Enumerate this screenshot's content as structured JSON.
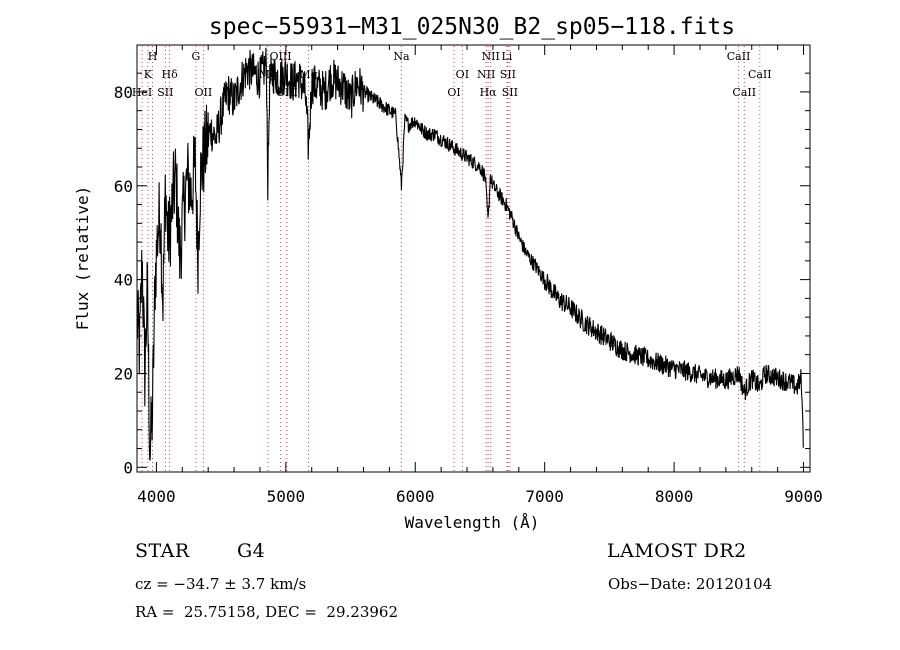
{
  "chart_data": {
    "type": "line",
    "title": "spec−55931−M31_025N30_B2_sp05−118.fits",
    "xlabel": "Wavelength (Å)",
    "ylabel": "Flux (relative)",
    "xlim": [
      3850,
      9050
    ],
    "ylim": [
      -1,
      90
    ],
    "xticks": [
      4000,
      5000,
      6000,
      7000,
      8000,
      9000
    ],
    "yticks": [
      0,
      20,
      40,
      60,
      80
    ],
    "grid": false,
    "series": [
      {
        "x": [
          3850,
          3870,
          3890,
          3910,
          3930,
          3950,
          3970,
          3990,
          4010,
          4030,
          4050,
          4070,
          4090,
          4110,
          4130,
          4150,
          4180,
          4210,
          4240,
          4270,
          4300,
          4320,
          4340,
          4380,
          4420,
          4460,
          4500,
          4550,
          4600,
          4650,
          4700,
          4750,
          4800,
          4850,
          4861,
          4875,
          4900,
          4950,
          5000,
          5050,
          5100,
          5150,
          5175,
          5200,
          5250,
          5300,
          5350,
          5400,
          5450,
          5500,
          5550,
          5600,
          5650,
          5700,
          5750,
          5800,
          5850,
          5893,
          5920,
          5950,
          6000,
          6050,
          6100,
          6150,
          6200,
          6250,
          6300,
          6350,
          6400,
          6450,
          6500,
          6540,
          6563,
          6580,
          6600,
          6650,
          6700,
          6750,
          6800,
          6850,
          6900,
          6950,
          7000,
          7100,
          7200,
          7300,
          7400,
          7500,
          7600,
          7700,
          7800,
          7900,
          8000,
          8100,
          8200,
          8300,
          8400,
          8500,
          8542,
          8600,
          8662,
          8700,
          8800,
          8900,
          8950,
          8980,
          8995,
          9000
        ],
        "y": [
          32,
          25,
          45,
          20,
          38,
          3,
          12,
          40,
          50,
          55,
          35,
          60,
          48,
          52,
          58,
          62,
          45,
          55,
          62,
          58,
          65,
          45,
          62,
          68,
          72,
          70,
          75,
          80,
          78,
          82,
          85,
          84,
          83,
          86,
          60,
          82,
          84,
          83,
          84,
          82,
          83,
          80,
          68,
          82,
          81,
          80,
          83,
          82,
          81,
          78,
          82,
          80,
          79,
          78,
          77,
          76,
          75,
          60,
          74,
          73,
          74,
          72,
          71,
          71,
          70,
          69,
          68,
          67,
          66,
          65,
          64,
          62,
          52,
          62,
          60,
          58,
          56,
          53,
          49,
          46,
          44,
          42,
          40,
          36,
          34,
          31,
          29,
          27,
          25,
          24,
          23,
          22,
          21,
          20.5,
          19.5,
          19,
          18.5,
          20,
          16,
          19,
          17,
          20,
          19,
          18,
          17,
          19,
          10,
          0
        ]
      }
    ],
    "lines": [
      {
        "label": "H",
        "x": 3970,
        "row": 0
      },
      {
        "label": "K",
        "x": 3934,
        "row": 1
      },
      {
        "label": "Hδ",
        "x": 4102,
        "row": 1
      },
      {
        "label": "HeI",
        "x": 3889,
        "row": 2
      },
      {
        "label": "SII",
        "x": 4069,
        "row": 2
      },
      {
        "label": "G",
        "x": 4305,
        "row": 0
      },
      {
        "label": "OII",
        "x": 4363,
        "row": 2
      },
      {
        "label": "OIII",
        "x": 4959,
        "row": 0
      },
      {
        "label": "Mg",
        "x": 4861,
        "row": 1
      },
      {
        "label": "OIII",
        "x": 5007,
        "row": 2
      },
      {
        "label": "Mg",
        "x": 5175,
        "row": 1
      },
      {
        "label": "Na",
        "x": 5893,
        "row": 0
      },
      {
        "label": "OI",
        "x": 6364,
        "row": 1
      },
      {
        "label": "OI",
        "x": 6300,
        "row": 2
      },
      {
        "label": "NII",
        "x": 6583,
        "row": 0
      },
      {
        "label": "Li",
        "x": 6708,
        "row": 0
      },
      {
        "label": "NII",
        "x": 6548,
        "row": 1
      },
      {
        "label": "SII",
        "x": 6716,
        "row": 1
      },
      {
        "label": "Hα",
        "x": 6563,
        "row": 2
      },
      {
        "label": "SII",
        "x": 6731,
        "row": 2
      },
      {
        "label": "CaII",
        "x": 8498,
        "row": 0
      },
      {
        "label": "CaII",
        "x": 8662,
        "row": 1
      },
      {
        "label": "CaII",
        "x": 8542,
        "row": 2
      }
    ]
  },
  "info": {
    "class_label": "STAR",
    "subclass": "G4",
    "survey": "LAMOST DR2",
    "cz": "cz = −34.7 ± 3.7 km/s",
    "obs_date": "Obs−Date: 20120104",
    "coords": "RA =  25.75158, DEC =  29.23962"
  }
}
